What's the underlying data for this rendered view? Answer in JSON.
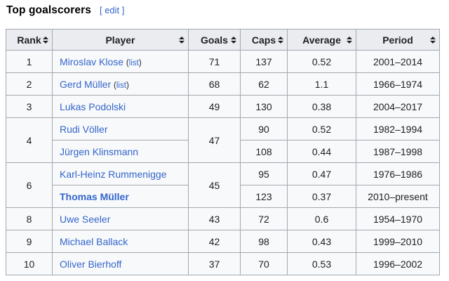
{
  "page": {
    "title": "Top goalscorers",
    "edit_bracket_open": "[",
    "edit_label": "edit",
    "edit_bracket_close": "]"
  },
  "colors": {
    "link_blue": "#3366cc",
    "header_bg": "#eaecf0",
    "cell_bg": "#f8f9fa",
    "table_border": "#a2a9b1",
    "text": "#202122"
  },
  "table": {
    "headers": [
      "Rank",
      "Player",
      "Goals",
      "Caps",
      "Average",
      "Period"
    ],
    "sort_icon_name": "sort-both-icon",
    "list_paren_open": "(",
    "list_paren_close": ")",
    "rows": [
      {
        "rank": "1",
        "player": "Miroslav Klose",
        "list_label": "list",
        "goals": "71",
        "caps": "137",
        "average": "0.52",
        "period": "2001–2014"
      },
      {
        "rank": "2",
        "player": "Gerd Müller",
        "list_label": "list",
        "goals": "68",
        "caps": "62",
        "average": "1.1",
        "period": "1966–1974"
      },
      {
        "rank": "3",
        "player": "Lukas Podolski",
        "goals": "49",
        "caps": "130",
        "average": "0.38",
        "period": "2004–2017"
      },
      {
        "rank": "4",
        "rank_rowspan": 2,
        "player": "Rudi Völler",
        "goals": "47",
        "goals_rowspan": 2,
        "caps": "90",
        "average": "0.52",
        "period": "1982–1994"
      },
      {
        "player": "Jürgen Klinsmann",
        "caps": "108",
        "average": "0.44",
        "period": "1987–1998"
      },
      {
        "rank": "6",
        "rank_rowspan": 2,
        "player": "Karl-Heinz Rummenigge",
        "goals": "45",
        "goals_rowspan": 2,
        "caps": "95",
        "average": "0.47",
        "period": "1976–1986"
      },
      {
        "player": "Thomas Müller",
        "player_bold": true,
        "caps": "123",
        "average": "0.37",
        "period": "2010–present"
      },
      {
        "rank": "8",
        "player": "Uwe Seeler",
        "goals": "43",
        "caps": "72",
        "average": "0.6",
        "period": "1954–1970"
      },
      {
        "rank": "9",
        "player": "Michael Ballack",
        "goals": "42",
        "caps": "98",
        "average": "0.43",
        "period": "1999–2010"
      },
      {
        "rank": "10",
        "player": "Oliver Bierhoff",
        "goals": "37",
        "caps": "70",
        "average": "0.53",
        "period": "1996–2002"
      }
    ]
  }
}
